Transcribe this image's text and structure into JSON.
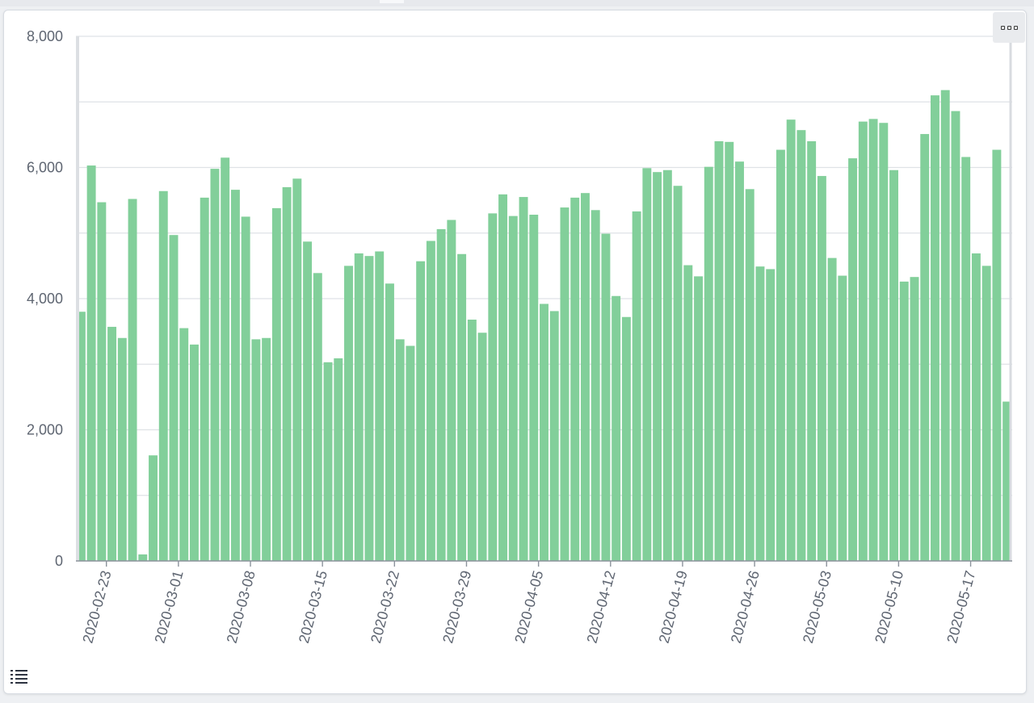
{
  "chart_data": {
    "type": "bar",
    "color": "#82cf9a",
    "x_start_date": "2020-02-20",
    "x_tick_labels": [
      "2020-02-23",
      "2020-03-01",
      "2020-03-08",
      "2020-03-15",
      "2020-03-22",
      "2020-03-29",
      "2020-04-05",
      "2020-04-12",
      "2020-04-19",
      "2020-04-26",
      "2020-05-03",
      "2020-05-10",
      "2020-05-17"
    ],
    "y_tick_labels": [
      "0",
      "2,000",
      "4,000",
      "6,000",
      "8,000"
    ],
    "ylim": [
      0,
      8000
    ],
    "grid": true,
    "values": [
      3800,
      6030,
      5470,
      3570,
      3400,
      5520,
      100,
      1610,
      5640,
      4970,
      3550,
      3300,
      5540,
      5980,
      6150,
      5660,
      5250,
      3380,
      3400,
      5380,
      5700,
      5830,
      4870,
      4390,
      3030,
      3090,
      4500,
      4690,
      4650,
      4720,
      4230,
      3380,
      3280,
      4570,
      4880,
      5060,
      5200,
      4680,
      3680,
      3480,
      5300,
      5590,
      5260,
      5550,
      5280,
      3920,
      3810,
      5390,
      5540,
      5610,
      5350,
      4990,
      4040,
      3720,
      5330,
      5990,
      5930,
      5960,
      5720,
      4510,
      4340,
      6010,
      6400,
      6390,
      6090,
      5670,
      4490,
      4450,
      6270,
      6730,
      6570,
      6400,
      5870,
      4620,
      4350,
      6140,
      6700,
      6740,
      6680,
      5960,
      4260,
      4330,
      6510,
      7100,
      7180,
      6860,
      6160,
      4690,
      4500,
      6270,
      2430
    ]
  },
  "toolbar": {
    "menu_icon": "dots-menu-icon",
    "legend_icon": "list-icon"
  }
}
